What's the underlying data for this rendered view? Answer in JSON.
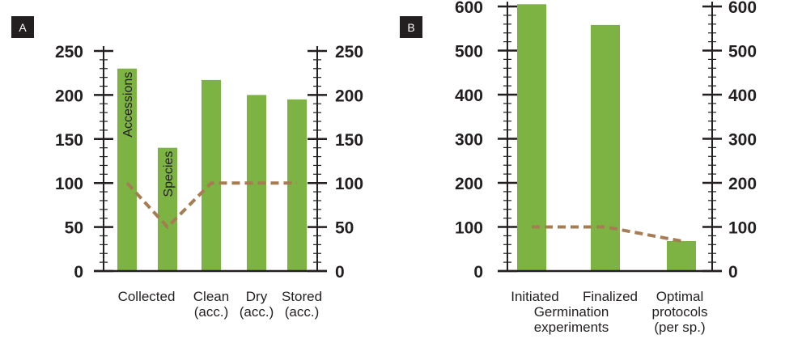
{
  "colors": {
    "bar": "#7cb342",
    "line": "#a67c52",
    "axis": "#231f20",
    "panel_badge": "#231f20"
  },
  "chart_data": [
    {
      "type": "bar",
      "panel": "A",
      "categories": [
        "Collected",
        "Collected",
        "Clean\n(acc.)",
        "Dry\n(acc.)",
        "Stored\n(acc.)"
      ],
      "category_labels": [
        "Collected",
        "Clean\n(acc.)",
        "Dry\n(acc.)",
        "Stored\n(acc.)"
      ],
      "values": [
        230,
        140,
        217,
        200,
        195
      ],
      "bar_labels": [
        "Accessions",
        "Species",
        "",
        "",
        ""
      ],
      "line_values": [
        100,
        50,
        100,
        100,
        100
      ],
      "ylim": [
        0,
        250
      ],
      "yticks": [
        0,
        50,
        100,
        150,
        200,
        250
      ],
      "minor_step": 10,
      "title": "",
      "xlabel": "",
      "ylabel": ""
    },
    {
      "type": "bar",
      "panel": "B",
      "categories": [
        "Initiated",
        "Finalized",
        "Optimal\nprotocols\n(per sp.)"
      ],
      "category_labels": [
        "Initiated",
        "Finalized",
        "Optimal\nprotocols\n(per sp.)"
      ],
      "group_label": "Germination\nexperiments",
      "values": [
        605,
        558,
        68
      ],
      "bar_labels": [
        "",
        "",
        ""
      ],
      "line_values": [
        100,
        100,
        68
      ],
      "ylim": [
        0,
        600
      ],
      "yticks": [
        0,
        100,
        200,
        300,
        400,
        500,
        600
      ],
      "minor_step": 20,
      "title": "",
      "xlabel": "",
      "ylabel": ""
    }
  ]
}
